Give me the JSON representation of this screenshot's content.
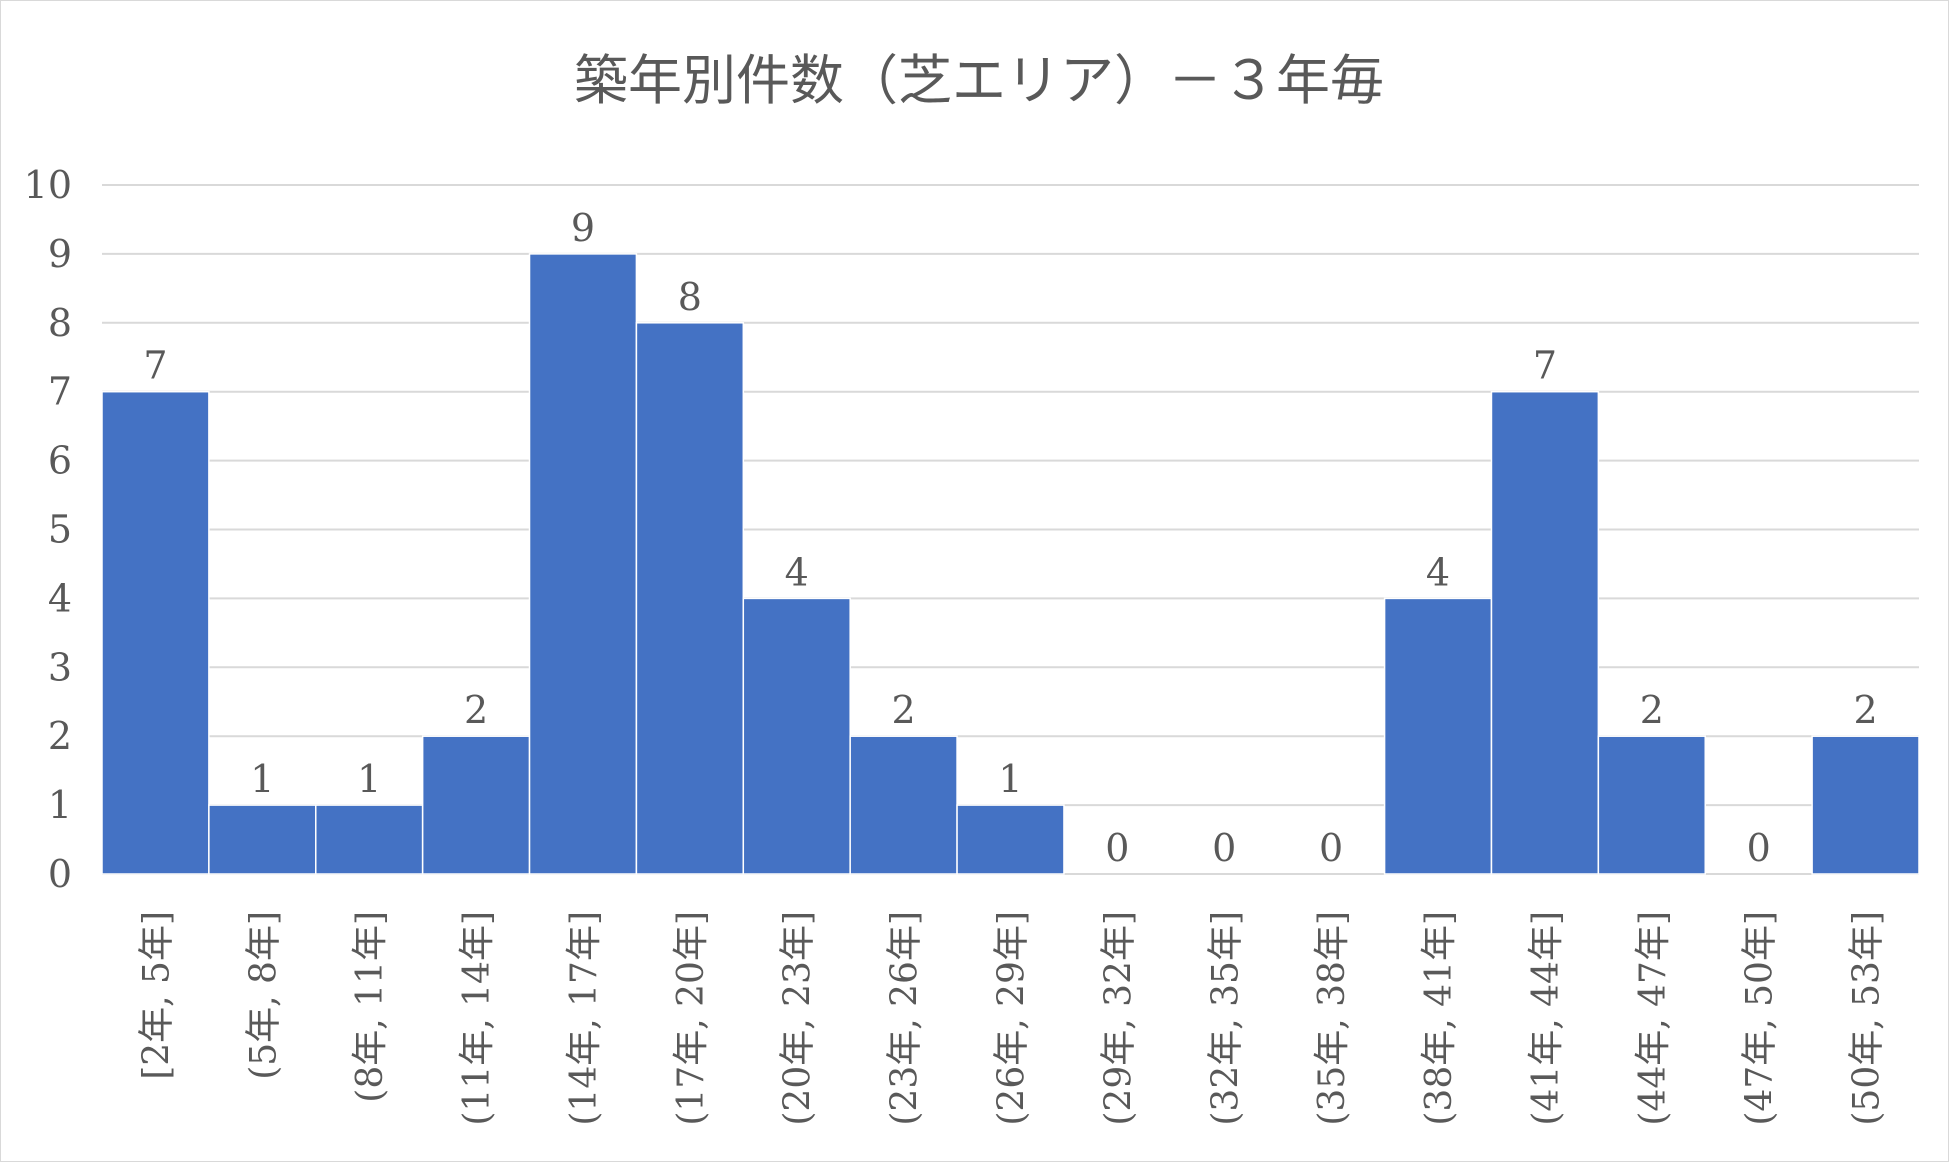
{
  "chart_data": {
    "type": "bar",
    "title": "築年別件数（芝エリア）－３年毎",
    "xlabel": "",
    "ylabel": "",
    "ylim": [
      0,
      10
    ],
    "yticks": [
      0,
      1,
      2,
      3,
      4,
      5,
      6,
      7,
      8,
      9,
      10
    ],
    "grid": true,
    "legend": "none",
    "bar_color": "#4472c4",
    "categories": [
      "[2年, 5年]",
      "(5年, 8年]",
      "(8年, 11年]",
      "(11年, 14年]",
      "(14年, 17年]",
      "(17年, 20年]",
      "(20年, 23年]",
      "(23年, 26年]",
      "(26年, 29年]",
      "(29年, 32年]",
      "(32年, 35年]",
      "(35年, 38年]",
      "(38年, 41年]",
      "(41年, 44年]",
      "(44年, 47年]",
      "(47年, 50年]",
      "(50年, 53年]"
    ],
    "values": [
      7,
      1,
      1,
      2,
      9,
      8,
      4,
      2,
      1,
      0,
      0,
      0,
      4,
      7,
      2,
      0,
      2
    ]
  }
}
